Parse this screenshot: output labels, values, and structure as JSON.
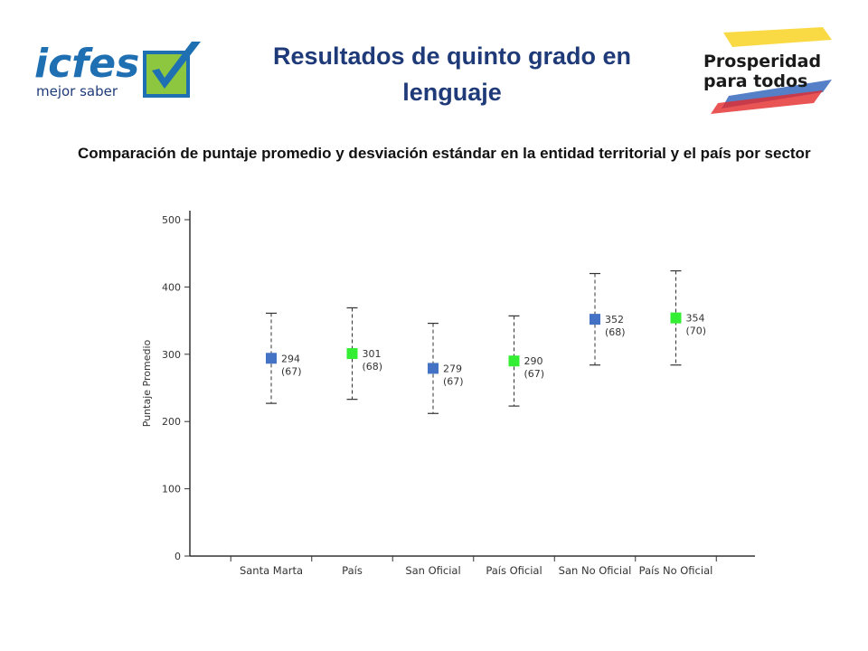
{
  "header": {
    "title": "Resultados de quinto grado en lenguaje",
    "subtitle": "Comparación de puntaje promedio y desviación estándar en la entidad territorial y el país por sector"
  },
  "logos": {
    "left": {
      "wordmark": "icfes",
      "tagline": "mejor saber",
      "icon": "checkmark-icon"
    },
    "right": {
      "line1": "Prosperidad",
      "line2": "para todos"
    }
  },
  "colors": {
    "title": "#1f3a78",
    "blue_marker": "#4472c4",
    "green_marker": "#33ee33"
  },
  "chart_data": {
    "type": "scatter",
    "title": "",
    "xlabel": "",
    "ylabel": "Puntaje Promedio",
    "ylim": [
      0,
      500
    ],
    "yticks": [
      0,
      100,
      200,
      300,
      400,
      500
    ],
    "grid": false,
    "categories": [
      "Santa Marta",
      "País",
      "San Oficial",
      "País Oficial",
      "San No Oficial",
      "País No Oficial"
    ],
    "means": [
      294,
      301,
      279,
      290,
      352,
      354
    ],
    "std_dev": [
      67,
      68,
      67,
      67,
      68,
      70
    ],
    "mean_labels": [
      "294",
      "301",
      "279",
      "290",
      "352",
      "354"
    ],
    "sd_labels": [
      "(67)",
      "(68)",
      "(67)",
      "(67)",
      "(68)",
      "(70)"
    ],
    "marker_colors": [
      "#4472c4",
      "#33ee33",
      "#4472c4",
      "#33ee33",
      "#4472c4",
      "#33ee33"
    ]
  }
}
